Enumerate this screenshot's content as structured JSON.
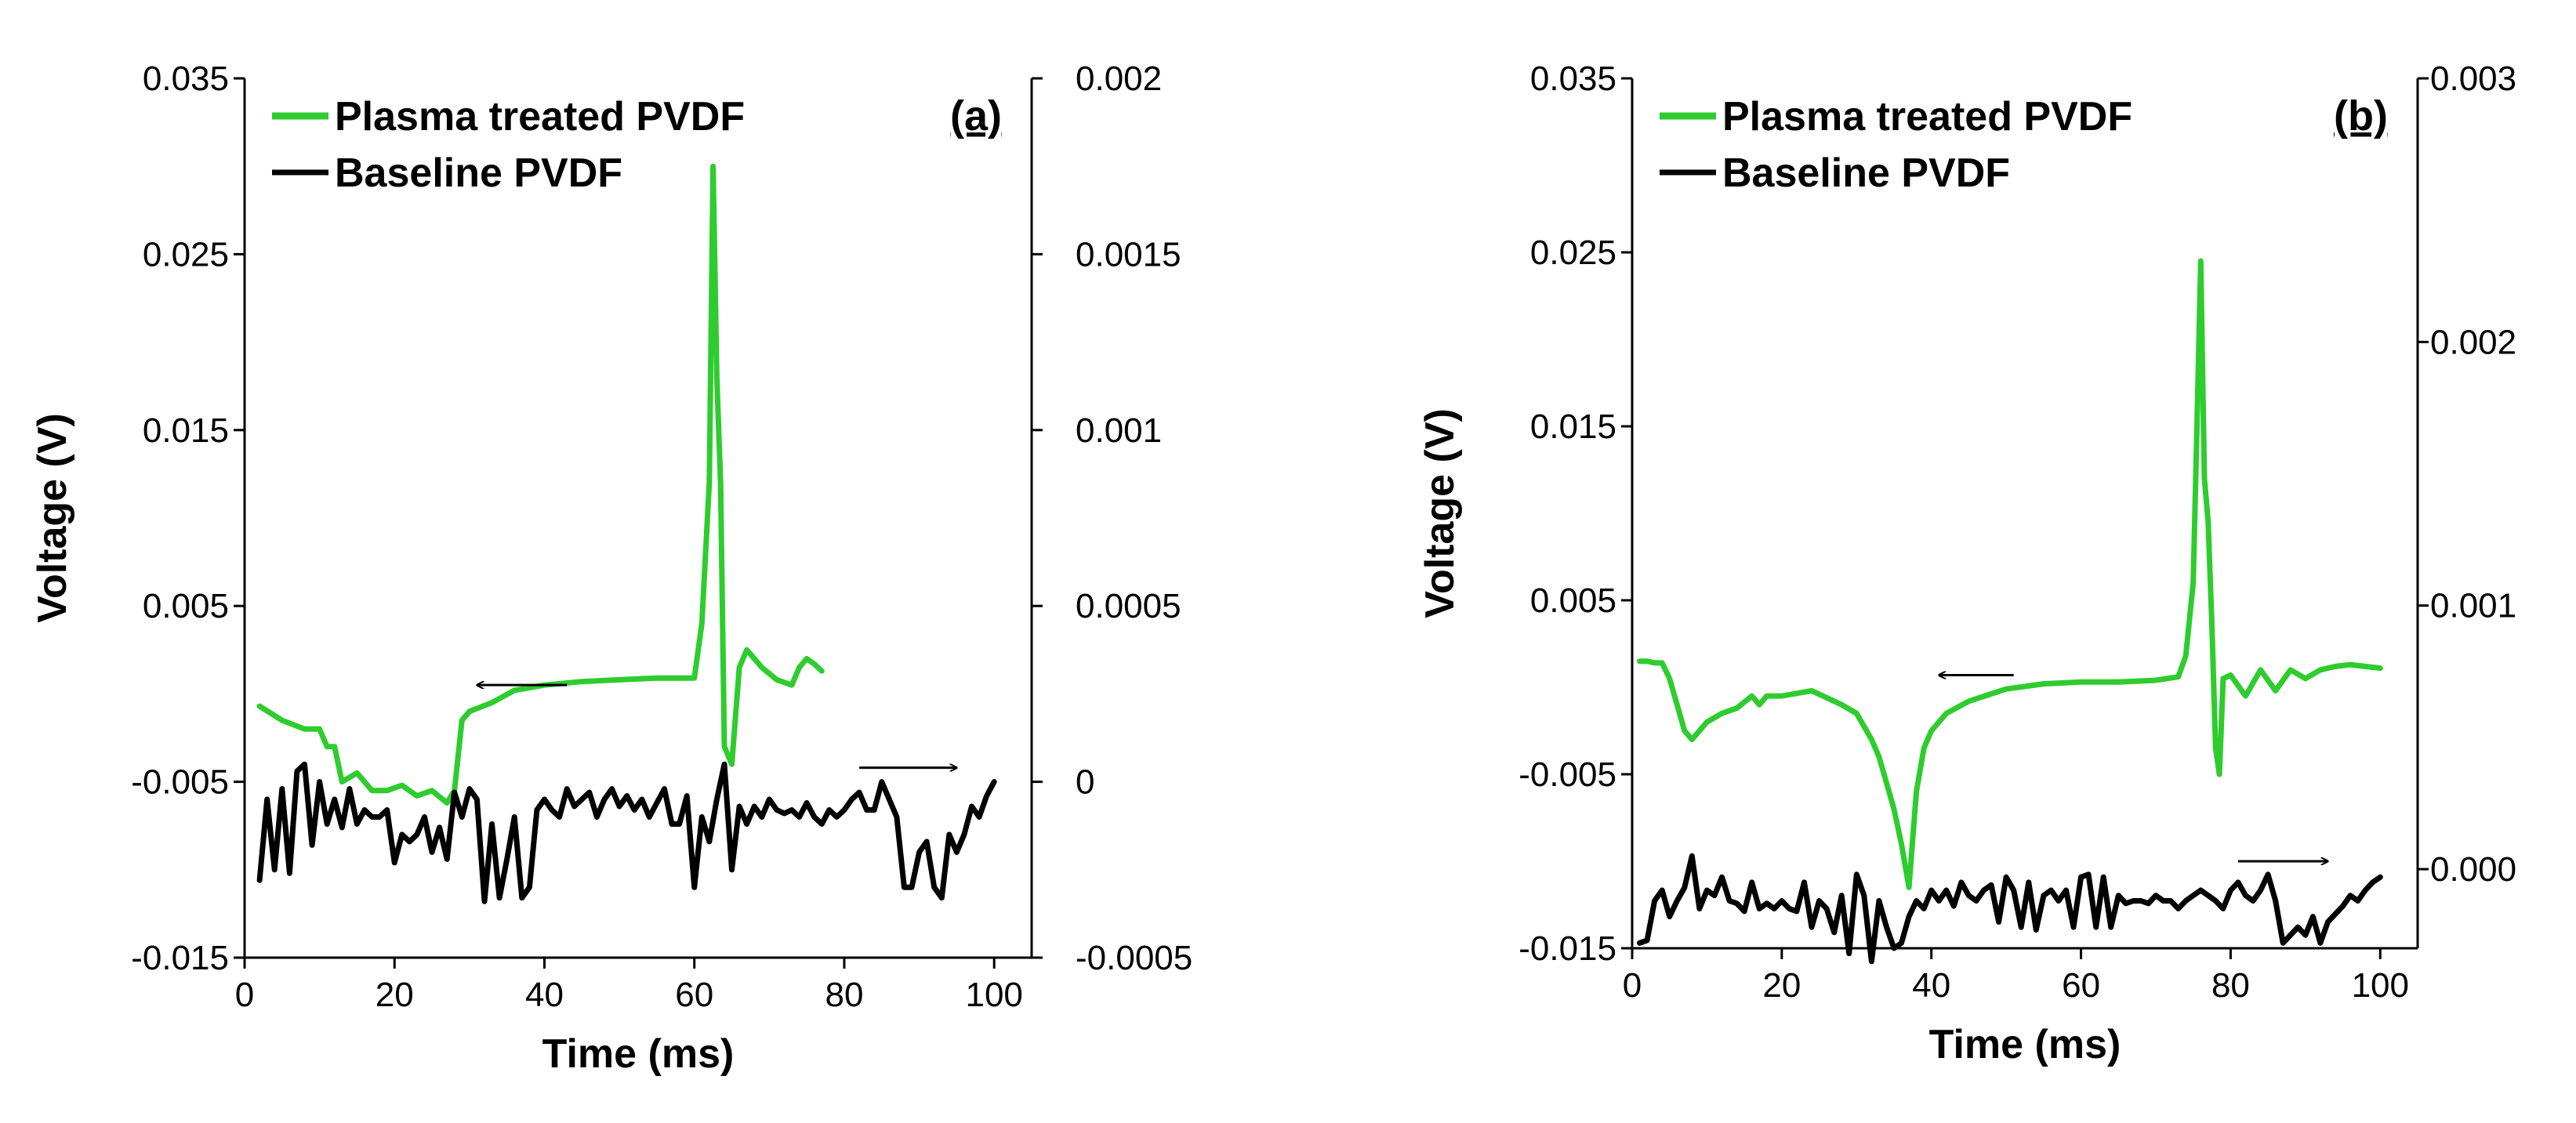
{
  "chart_data": [
    {
      "type": "line",
      "panel_label": "(a)",
      "xlabel": "Time (ms)",
      "ylabel": "Voltage (V)",
      "xlim": [
        0,
        105
      ],
      "xticks": [
        0,
        20,
        40,
        60,
        80,
        100
      ],
      "ylim": [
        -0.015,
        0.035
      ],
      "yticks": [
        -0.015,
        -0.005,
        0.005,
        0.015,
        0.025,
        0.035
      ],
      "ytick_labels": [
        "-0.015",
        "-0.005",
        "0.005",
        "0.015",
        "0.025",
        "0.035"
      ],
      "y2lim": [
        -0.0005,
        0.002
      ],
      "y2ticks": [
        -0.0005,
        0,
        0.0005,
        0.001,
        0.0015,
        0.002
      ],
      "y2tick_labels": [
        "-0.0005",
        "0",
        "0.0005",
        "0.001",
        "0.0015",
        "0.002"
      ],
      "legend": {
        "position": "top-left",
        "entries": [
          "Plasma treated PVDF",
          "Baseline PVDF"
        ]
      },
      "arrows": [
        {
          "direction": "left",
          "axis": "primary",
          "x_from": 43,
          "x_to": 31,
          "y": 0.0005
        },
        {
          "direction": "right",
          "axis": "secondary",
          "x_from": 82,
          "x_to": 95,
          "y": 4e-05
        }
      ],
      "series": [
        {
          "name": "Plasma treated PVDF",
          "color": "#2ecc2e",
          "axis": "primary",
          "x": [
            2,
            5,
            8,
            10,
            11,
            12,
            13,
            15,
            17,
            19,
            21,
            23,
            25,
            27,
            28,
            29,
            30,
            33,
            36,
            40,
            45,
            50,
            55,
            60,
            61,
            62,
            62.5,
            63,
            63.5,
            64,
            65,
            66,
            67,
            69,
            71,
            73,
            74,
            75,
            76,
            77
          ],
          "y": [
            -0.0007,
            -0.0015,
            -0.002,
            -0.002,
            -0.003,
            -0.003,
            -0.005,
            -0.0045,
            -0.0055,
            -0.0055,
            -0.0052,
            -0.0058,
            -0.0055,
            -0.0062,
            -0.0055,
            -0.0015,
            -0.001,
            -0.0005,
            0.0002,
            0.0005,
            0.0007,
            0.0008,
            0.0009,
            0.0009,
            0.004,
            0.012,
            0.03,
            0.018,
            0.012,
            -0.003,
            -0.004,
            0.0015,
            0.0025,
            0.0015,
            0.0008,
            0.0005,
            0.0015,
            0.002,
            0.0017,
            0.0013
          ]
        },
        {
          "name": "Baseline PVDF",
          "color": "#000000",
          "axis": "secondary",
          "x": [
            2,
            3,
            4,
            5,
            6,
            7,
            8,
            9,
            10,
            11,
            12,
            13,
            14,
            15,
            16,
            17,
            18,
            19,
            20,
            21,
            22,
            23,
            24,
            25,
            26,
            27,
            28,
            29,
            30,
            31,
            32,
            33,
            34,
            35,
            36,
            37,
            38,
            39,
            40,
            41,
            42,
            43,
            44,
            45,
            46,
            47,
            48,
            49,
            50,
            51,
            52,
            53,
            54,
            55,
            56,
            57,
            58,
            59,
            60,
            61,
            62,
            63,
            64,
            65,
            66,
            67,
            68,
            69,
            70,
            71,
            72,
            73,
            74,
            75,
            76,
            77,
            78,
            79,
            80,
            81,
            82,
            83,
            84,
            85,
            86,
            87,
            88,
            89,
            90,
            91,
            92,
            93,
            94,
            95,
            96,
            97,
            98,
            99,
            100
          ],
          "y": [
            -0.00028,
            -5e-05,
            -0.00025,
            -2e-05,
            -0.00026,
            3e-05,
            5e-05,
            -0.00018,
            0.0,
            -0.00012,
            -5e-05,
            -0.00013,
            -2e-05,
            -0.00012,
            -8e-05,
            -0.0001,
            -0.0001,
            -8e-05,
            -0.00023,
            -0.00015,
            -0.00017,
            -0.00015,
            -0.0001,
            -0.0002,
            -0.00013,
            -0.00022,
            -3e-05,
            -0.0001,
            -2e-05,
            -5e-05,
            -0.00034,
            -0.00012,
            -0.00033,
            -0.00022,
            -0.0001,
            -0.00033,
            -0.0003,
            -8e-05,
            -5e-05,
            -8e-05,
            -0.0001,
            -2e-05,
            -7e-05,
            -5e-05,
            -3e-05,
            -0.0001,
            -5e-05,
            -2e-05,
            -7e-05,
            -4e-05,
            -8e-05,
            -5e-05,
            -0.0001,
            -6e-05,
            -2e-05,
            -0.00012,
            -0.00012,
            -4e-05,
            -0.0003,
            -0.0001,
            -0.00017,
            -5e-05,
            5e-05,
            -0.00025,
            -7e-05,
            -0.00012,
            -7e-05,
            -0.0001,
            -5e-05,
            -8e-05,
            -9e-05,
            -8e-05,
            -0.0001,
            -6e-05,
            -0.0001,
            -0.00012,
            -8e-05,
            -0.0001,
            -8e-05,
            -5e-05,
            -3e-05,
            -8e-05,
            -8e-05,
            0.0,
            -5e-05,
            -0.0001,
            -0.0003,
            -0.0003,
            -0.0002,
            -0.00017,
            -0.0003,
            -0.00033,
            -0.00015,
            -0.0002,
            -0.00015,
            -7e-05,
            -0.0001,
            -4e-05,
            0.0
          ]
        }
      ]
    },
    {
      "type": "line",
      "panel_label": "(b)",
      "xlabel": "Time (ms)",
      "ylabel": "Voltage (V)",
      "xlim": [
        0,
        105
      ],
      "xticks": [
        0,
        20,
        40,
        60,
        80,
        100
      ],
      "ylim": [
        -0.015,
        0.035
      ],
      "yticks": [
        -0.015,
        -0.005,
        0.005,
        0.015,
        0.025,
        0.035
      ],
      "ytick_labels": [
        "-0.015",
        "-0.005",
        "0.005",
        "0.015",
        "0.025",
        "0.035"
      ],
      "y2lim": [
        -0.0003,
        0.003
      ],
      "y2ticks": [
        0.0,
        0.001,
        0.002,
        0.003
      ],
      "y2tick_labels": [
        "0.000",
        "0.001",
        "0.002",
        "0.003"
      ],
      "legend": {
        "position": "top-left",
        "entries": [
          "Plasma treated PVDF",
          "Baseline PVDF"
        ]
      },
      "arrows": [
        {
          "direction": "left",
          "axis": "primary",
          "x_from": 51,
          "x_to": 41,
          "y": 0.0007
        },
        {
          "direction": "right",
          "axis": "secondary",
          "x_from": 81,
          "x_to": 93,
          "y": 3e-05
        }
      ],
      "series": [
        {
          "name": "Plasma treated PVDF",
          "color": "#2ecc2e",
          "axis": "primary",
          "x": [
            1,
            2,
            3,
            4,
            5,
            6,
            7,
            8,
            9,
            10,
            12,
            14,
            16,
            17,
            18,
            20,
            24,
            28,
            30,
            32,
            33,
            34,
            35,
            36,
            37,
            38,
            39,
            40,
            42,
            45,
            50,
            55,
            60,
            65,
            70,
            73,
            74,
            75,
            75.5,
            76,
            76.5,
            77,
            77.5,
            78,
            78.5,
            79,
            80,
            82,
            84,
            86,
            88,
            90,
            92,
            94,
            96,
            98,
            100
          ],
          "y": [
            0.0015,
            0.0015,
            0.0014,
            0.0014,
            0.0005,
            -0.001,
            -0.0025,
            -0.003,
            -0.0025,
            -0.002,
            -0.0015,
            -0.0012,
            -0.0005,
            -0.001,
            -0.0005,
            -0.0005,
            -0.0002,
            -0.001,
            -0.0015,
            -0.003,
            -0.004,
            -0.0055,
            -0.007,
            -0.009,
            -0.0115,
            -0.006,
            -0.0035,
            -0.0025,
            -0.0015,
            -0.0008,
            -0.0001,
            0.0002,
            0.0003,
            0.0003,
            0.0004,
            0.0006,
            0.0018,
            0.006,
            0.015,
            0.0245,
            0.012,
            0.0095,
            0.0035,
            -0.0035,
            -0.005,
            0.0005,
            0.0007,
            -0.0005,
            0.001,
            -0.0002,
            0.001,
            0.0005,
            0.001,
            0.0012,
            0.0013,
            0.0012,
            0.0011
          ]
        },
        {
          "name": "Baseline PVDF",
          "color": "#000000",
          "axis": "secondary",
          "x": [
            1,
            2,
            3,
            4,
            5,
            6,
            7,
            8,
            9,
            10,
            11,
            12,
            13,
            14,
            15,
            16,
            17,
            18,
            19,
            20,
            21,
            22,
            23,
            24,
            25,
            26,
            27,
            28,
            29,
            30,
            31,
            32,
            33,
            34,
            35,
            36,
            37,
            38,
            39,
            40,
            41,
            42,
            43,
            44,
            45,
            46,
            47,
            48,
            49,
            50,
            51,
            52,
            53,
            54,
            55,
            56,
            57,
            58,
            59,
            60,
            61,
            62,
            63,
            64,
            65,
            66,
            67,
            68,
            69,
            70,
            71,
            72,
            73,
            74,
            75,
            76,
            77,
            78,
            79,
            80,
            81,
            82,
            83,
            84,
            85,
            86,
            87,
            88,
            89,
            90,
            91,
            92,
            93,
            94,
            95,
            96,
            97,
            98,
            99,
            100
          ],
          "y": [
            -0.00028,
            -0.00027,
            -0.00012,
            -8e-05,
            -0.00018,
            -0.00012,
            -7e-05,
            5e-05,
            -0.00015,
            -8e-05,
            -0.0001,
            -3e-05,
            -0.00012,
            -0.00013,
            -0.00016,
            -5e-05,
            -0.00015,
            -0.00013,
            -0.00015,
            -0.00012,
            -0.00015,
            -0.00016,
            -5e-05,
            -0.00022,
            -0.00012,
            -0.00015,
            -0.00024,
            -0.0001,
            -0.00032,
            -2e-05,
            -0.0001,
            -0.00035,
            -0.00012,
            -0.00022,
            -0.0003,
            -0.00028,
            -0.00018,
            -0.00012,
            -0.00015,
            -8e-05,
            -0.00012,
            -8e-05,
            -0.00014,
            -5e-05,
            -0.0001,
            -0.00012,
            -8e-05,
            -6e-05,
            -0.0002,
            -3e-05,
            -8e-05,
            -0.00022,
            -5e-05,
            -0.00023,
            -0.0001,
            -8e-05,
            -0.00012,
            -8e-05,
            -0.00022,
            -3e-05,
            -2e-05,
            -0.00022,
            -3e-05,
            -0.00022,
            -0.0001,
            -0.00013,
            -0.00012,
            -0.00012,
            -0.00013,
            -0.0001,
            -0.00012,
            -0.00012,
            -0.00015,
            -0.00012,
            -0.0001,
            -8e-05,
            -0.0001,
            -0.00012,
            -0.00015,
            -8e-05,
            -5e-05,
            -0.0001,
            -0.00012,
            -8e-05,
            -2e-05,
            -0.00012,
            -0.00028,
            -0.00025,
            -0.00022,
            -0.00025,
            -0.00018,
            -0.00028,
            -0.0002,
            -0.00017,
            -0.00014,
            -0.0001,
            -0.00012,
            -8e-05,
            -5e-05,
            -3e-05
          ]
        }
      ]
    }
  ]
}
